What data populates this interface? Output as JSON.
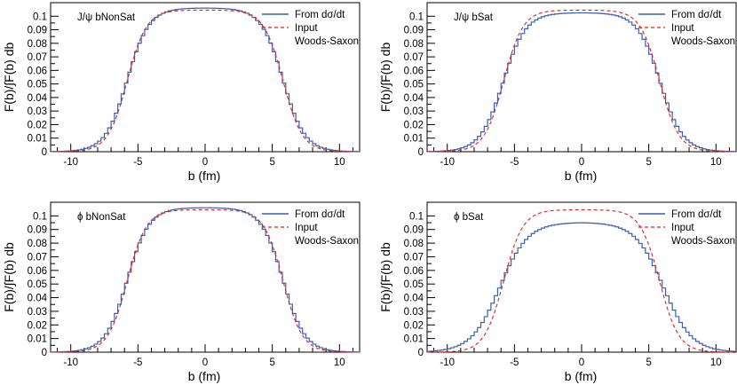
{
  "figure": {
    "panel_count": 4
  },
  "colors": {
    "histogram": "#3a5fb0",
    "input": "#e0201b",
    "axis": "#000000"
  },
  "chart_data": [
    {
      "type": "line",
      "label": "J/ψ  bNonSat",
      "xlabel": "b (fm)",
      "ylabel": "F(b)/∫F(b) db",
      "xlim": [
        -11.5,
        11.5
      ],
      "ylim": [
        0,
        0.11
      ],
      "xticks": [
        -10,
        -5,
        0,
        5,
        10
      ],
      "yticks": [
        0,
        0.01,
        0.02,
        0.03,
        0.04,
        0.05,
        0.06,
        0.07,
        0.08,
        0.09,
        0.1
      ],
      "legend": [
        "From dσ/dt",
        "Input",
        "Woods-Saxon"
      ],
      "legend_position": "top-right",
      "series": [
        {
          "name": "From dσ/dt",
          "style": "histogram",
          "peak": 0.106,
          "half_width": 5.8,
          "edge_diffuseness": 0.82,
          "extra_tail": 0
        },
        {
          "name": "Input Woods-Saxon",
          "style": "dashed",
          "peak": 0.1045,
          "half_width": 5.8,
          "edge_diffuseness": 0.72
        }
      ]
    },
    {
      "type": "line",
      "label": "J/ψ  bSat",
      "xlabel": "b (fm)",
      "ylabel": "F(b)/∫F(b) db",
      "xlim": [
        -11.5,
        11.5
      ],
      "ylim": [
        0,
        0.11
      ],
      "xticks": [
        -10,
        -5,
        0,
        5,
        10
      ],
      "yticks": [
        0,
        0.01,
        0.02,
        0.03,
        0.04,
        0.05,
        0.06,
        0.07,
        0.08,
        0.09,
        0.1
      ],
      "legend": [
        "From dσ/dt",
        "Input",
        "Woods-Saxon"
      ],
      "legend_position": "top-right",
      "series": [
        {
          "name": "From dσ/dt",
          "style": "histogram",
          "peak": 0.1025,
          "half_width": 5.85,
          "edge_diffuseness": 0.85,
          "extra_tail": 0
        },
        {
          "name": "Input Woods-Saxon",
          "style": "dashed",
          "peak": 0.1045,
          "half_width": 5.8,
          "edge_diffuseness": 0.72
        }
      ]
    },
    {
      "type": "line",
      "label": "ϕ  bNonSat",
      "xlabel": "b (fm)",
      "ylabel": "F(b)/∫F(b) db",
      "xlim": [
        -11.5,
        11.5
      ],
      "ylim": [
        0,
        0.11
      ],
      "xticks": [
        -10,
        -5,
        0,
        5,
        10
      ],
      "yticks": [
        0,
        0.01,
        0.02,
        0.03,
        0.04,
        0.05,
        0.06,
        0.07,
        0.08,
        0.09,
        0.1
      ],
      "legend": [
        "From dσ/dt",
        "Input",
        "Woods-Saxon"
      ],
      "legend_position": "top-right",
      "series": [
        {
          "name": "From dσ/dt",
          "style": "histogram",
          "peak": 0.106,
          "half_width": 5.8,
          "edge_diffuseness": 0.82,
          "extra_tail": 0
        },
        {
          "name": "Input Woods-Saxon",
          "style": "dashed",
          "peak": 0.1045,
          "half_width": 5.8,
          "edge_diffuseness": 0.72
        }
      ]
    },
    {
      "type": "line",
      "label": "ϕ  bSat",
      "xlabel": "b (fm)",
      "ylabel": "F(b)/∫F(b) db",
      "xlim": [
        -11.5,
        11.5
      ],
      "ylim": [
        0,
        0.11
      ],
      "xticks": [
        -10,
        -5,
        0,
        5,
        10
      ],
      "yticks": [
        0,
        0.01,
        0.02,
        0.03,
        0.04,
        0.05,
        0.06,
        0.07,
        0.08,
        0.09,
        0.1
      ],
      "legend": [
        "From dσ/dt",
        "Input",
        "Woods-Saxon"
      ],
      "legend_position": "top-right",
      "series": [
        {
          "name": "From dσ/dt",
          "style": "histogram",
          "peak": 0.095,
          "half_width": 6.1,
          "edge_diffuseness": 1.05,
          "extra_tail": 1
        },
        {
          "name": "Input Woods-Saxon",
          "style": "dashed",
          "peak": 0.1045,
          "half_width": 5.8,
          "edge_diffuseness": 0.72
        }
      ]
    }
  ]
}
